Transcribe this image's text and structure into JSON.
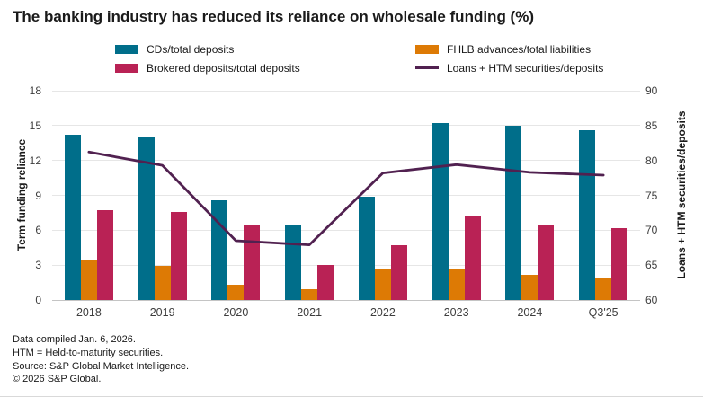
{
  "title": "The banking industry has reduced its reliance on wholesale funding (%)",
  "legend": [
    {
      "label": "CDs/total deposits",
      "color": "#006e8a",
      "type": "bar"
    },
    {
      "label": "FHLB advances/total liabilities",
      "color": "#dd7a05",
      "type": "bar"
    },
    {
      "label": "Brokered deposits/total deposits",
      "color": "#b92255",
      "type": "bar"
    },
    {
      "label": "Loans + HTM securities/deposits",
      "color": "#512150",
      "type": "line"
    }
  ],
  "chart_data": {
    "type": "bar",
    "subtype": "grouped bars with secondary-axis line",
    "categories": [
      "2018",
      "2019",
      "2020",
      "2021",
      "2022",
      "2023",
      "2024",
      "Q3'25"
    ],
    "series": [
      {
        "name": "CDs/total deposits",
        "type": "bar",
        "axis": "left",
        "color": "#006e8a",
        "values": [
          14.2,
          14.0,
          8.6,
          6.5,
          8.9,
          15.2,
          15.0,
          14.6
        ]
      },
      {
        "name": "FHLB advances/total liabilities",
        "type": "bar",
        "axis": "left",
        "color": "#dd7a05",
        "values": [
          3.5,
          2.9,
          1.3,
          0.9,
          2.7,
          2.7,
          2.2,
          1.9
        ]
      },
      {
        "name": "Brokered deposits/total deposits",
        "type": "bar",
        "axis": "left",
        "color": "#b92255",
        "values": [
          7.7,
          7.6,
          6.4,
          3.0,
          4.7,
          7.2,
          6.4,
          6.2
        ]
      },
      {
        "name": "Loans + HTM securities/deposits",
        "type": "line",
        "axis": "right",
        "color": "#512150",
        "values": [
          81.2,
          79.3,
          68.5,
          67.9,
          78.2,
          79.4,
          78.3,
          77.9
        ]
      }
    ],
    "left_axis": {
      "label": "Term funding reliance",
      "min": 0,
      "max": 18,
      "ticks": [
        0,
        3,
        6,
        9,
        12,
        15,
        18
      ]
    },
    "right_axis": {
      "label": "Loans + HTM securities/deposits",
      "min": 60,
      "max": 90,
      "ticks": [
        60,
        65,
        70,
        75,
        80,
        85,
        90
      ]
    },
    "grid": true,
    "legend_position": "top"
  },
  "colors": {
    "gridline": "#e6e6e6",
    "baseline": "#c4c4c4",
    "tick_text": "#3d3d3d",
    "text": "#1a1a1a"
  },
  "footer": {
    "line1": "Data compiled Jan. 6, 2026.",
    "line2": "HTM = Held-to-maturity securities.",
    "line3": "Source: S&P Global Market Intelligence.",
    "line4": "© 2026 S&P Global."
  }
}
